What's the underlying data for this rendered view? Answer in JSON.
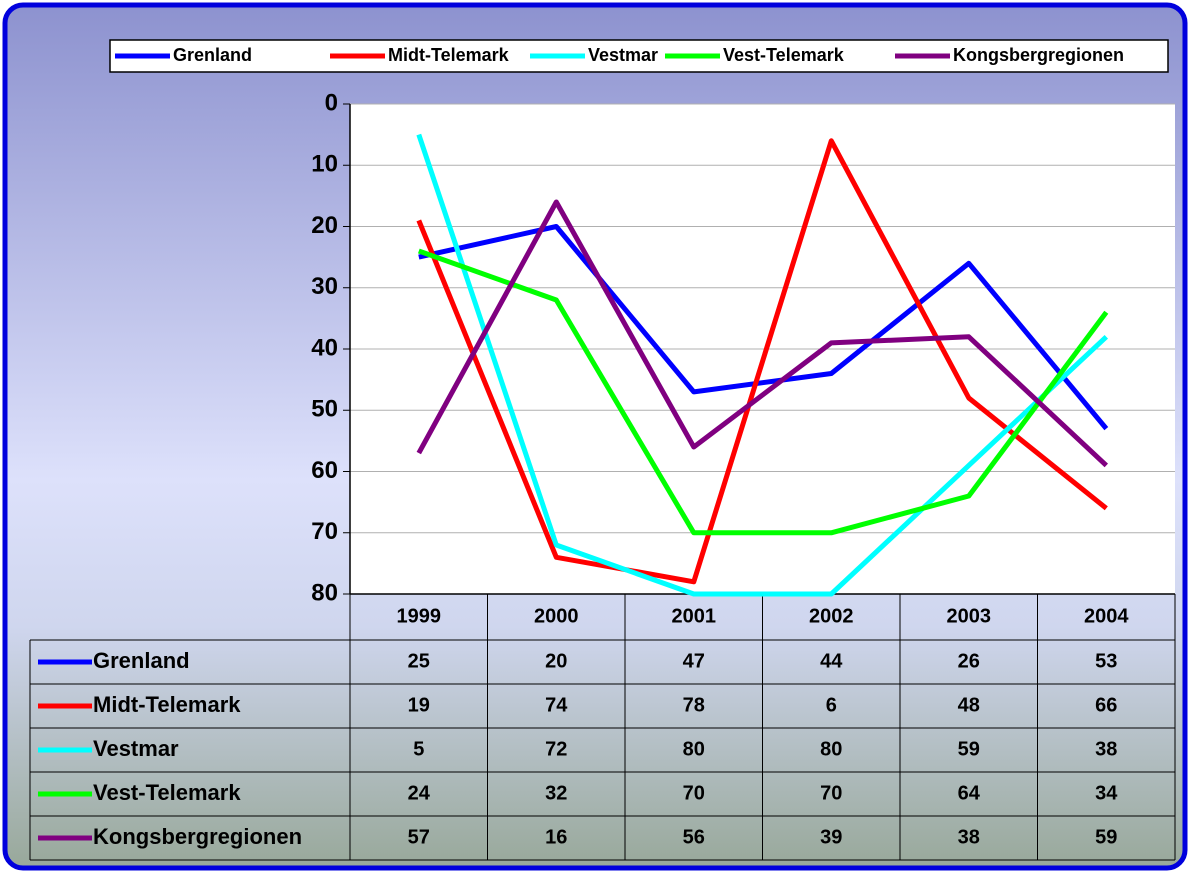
{
  "chart_data": {
    "type": "line",
    "categories": [
      "1999",
      "2000",
      "2001",
      "2002",
      "2003",
      "2004"
    ],
    "series": [
      {
        "name": "Grenland",
        "color": "#0000ff",
        "values": [
          25,
          20,
          47,
          44,
          26,
          53
        ]
      },
      {
        "name": "Midt-Telemark",
        "color": "#ff0000",
        "values": [
          19,
          74,
          78,
          6,
          48,
          66
        ]
      },
      {
        "name": "Vestmar",
        "color": "#00ffff",
        "values": [
          5,
          72,
          80,
          80,
          59,
          38
        ]
      },
      {
        "name": "Vest-Telemark",
        "color": "#00ff00",
        "values": [
          24,
          32,
          70,
          70,
          64,
          34
        ]
      },
      {
        "name": "Kongsbergregionen",
        "color": "#800080",
        "values": [
          57,
          16,
          56,
          39,
          38,
          59
        ]
      }
    ],
    "ylim": [
      0,
      80
    ],
    "yticks": [
      0,
      10,
      20,
      30,
      40,
      50,
      60,
      70,
      80
    ],
    "y_inverted": true,
    "grid": true,
    "legend": "top",
    "data_table": true
  }
}
